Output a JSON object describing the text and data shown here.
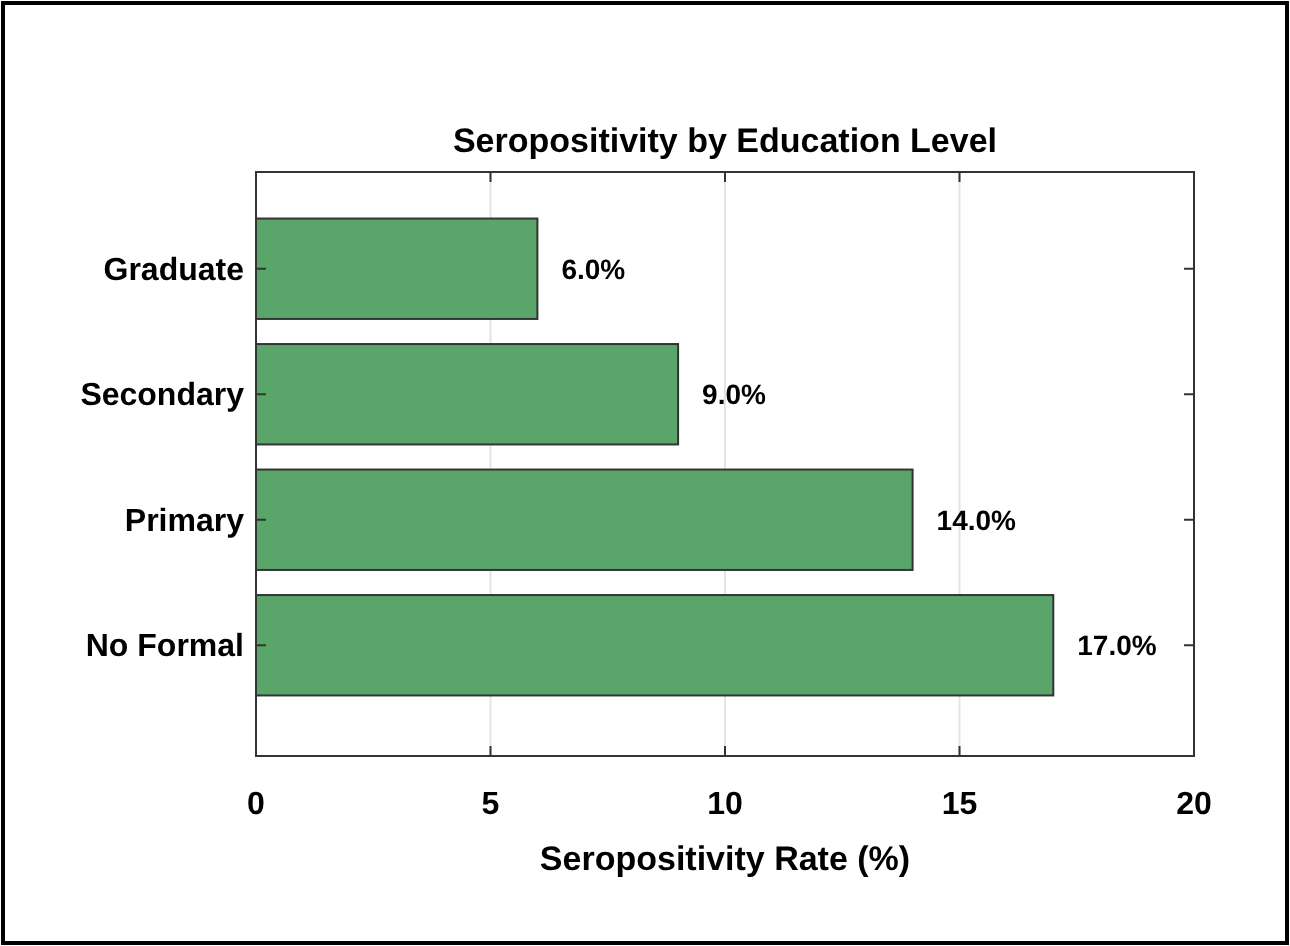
{
  "chart_data": {
    "type": "bar",
    "orientation": "horizontal",
    "title": "Seropositivity by Education Level",
    "xlabel": "Seropositivity Rate (%)",
    "categories": [
      "Graduate",
      "Secondary",
      "Primary",
      "No Formal"
    ],
    "values": [
      6,
      9,
      14,
      17
    ],
    "value_labels": [
      "6.0%",
      "9.0%",
      "14.0%",
      "17.0%"
    ],
    "color": "#5aa66a",
    "xlim": [
      0,
      20
    ],
    "xticks": [
      0,
      5,
      10,
      15,
      20
    ],
    "grid": "x"
  }
}
